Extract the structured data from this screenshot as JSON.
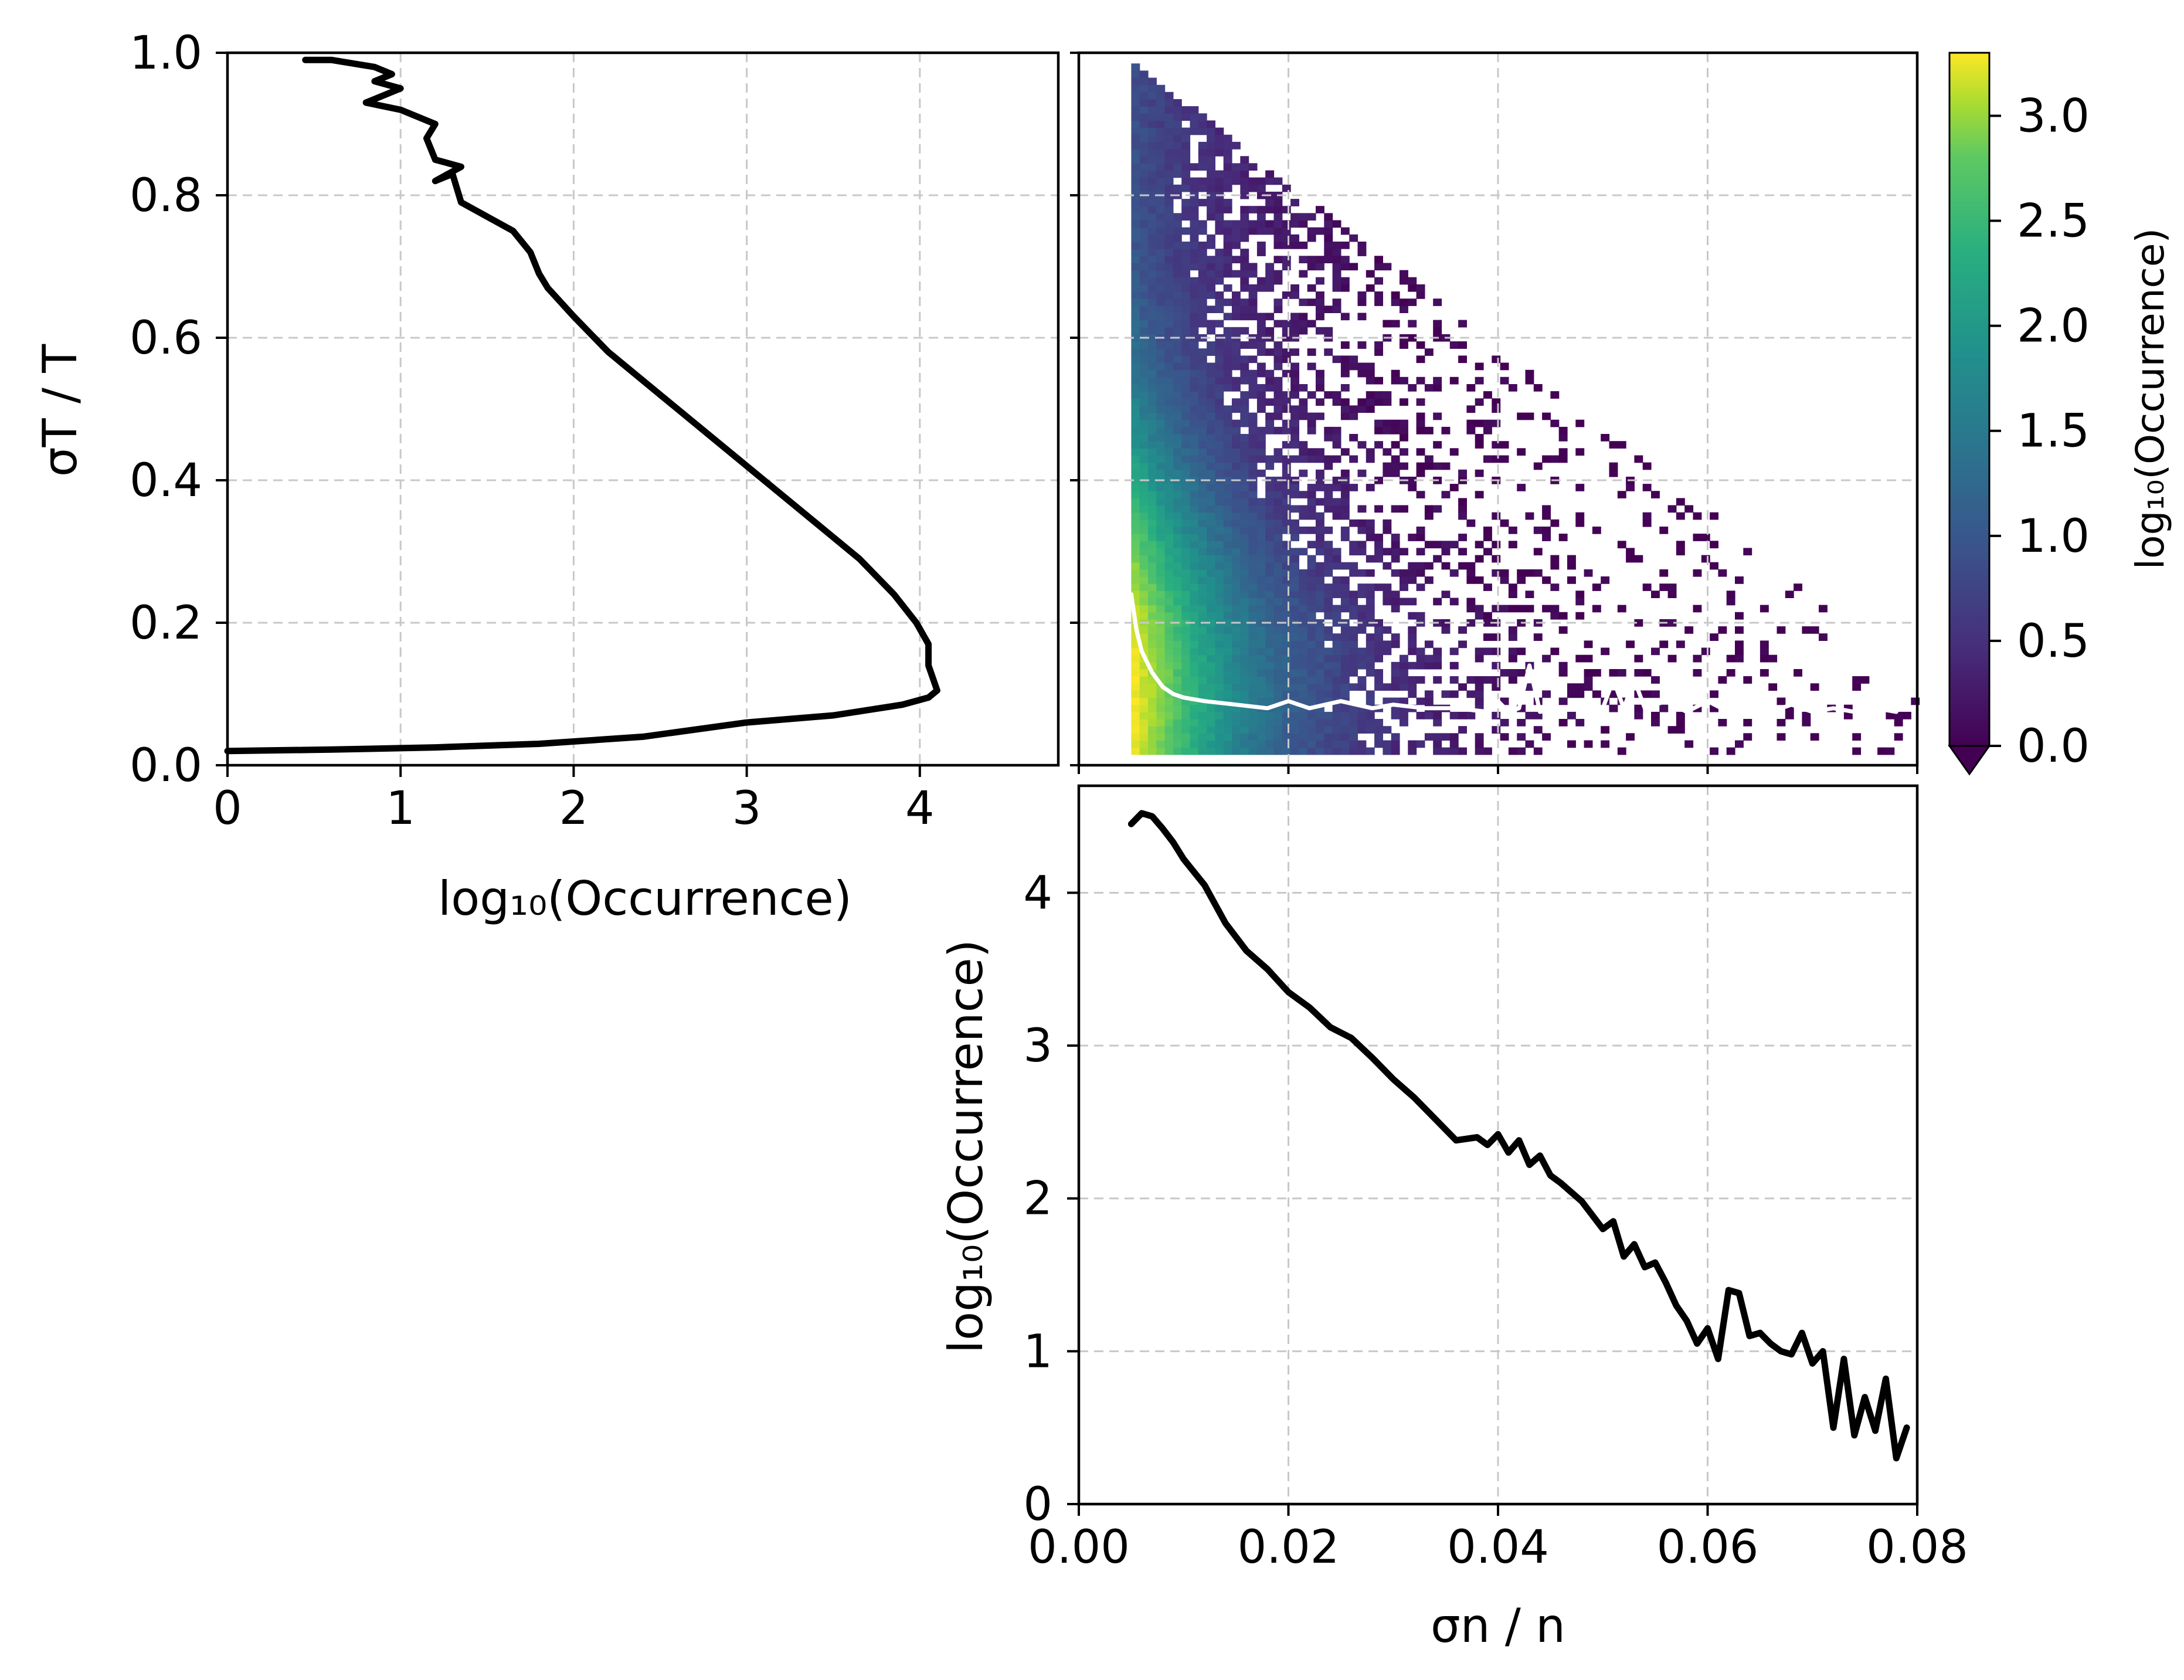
{
  "chart_data": [
    {
      "id": "left",
      "type": "line",
      "xlabel": "log₁₀(Occurrence)",
      "ylabel": "σT / T",
      "xlim": [
        0,
        4.8
      ],
      "ylim": [
        0,
        1.0
      ],
      "xticks": [
        "0",
        "1",
        "2",
        "3",
        "4"
      ],
      "yticks": [
        "0.0",
        "0.2",
        "0.4",
        "0.6",
        "0.8",
        "1.0"
      ],
      "grid": true,
      "series": [
        {
          "color": "#000000",
          "x": [
            0.0,
            0.6,
            1.2,
            1.8,
            2.4,
            3.0,
            3.5,
            3.9,
            4.05,
            4.1,
            4.05,
            4.05,
            3.98,
            3.85,
            3.65,
            3.4,
            3.1,
            2.8,
            2.5,
            2.2,
            2.0,
            1.85,
            1.8,
            1.75,
            1.65,
            1.5,
            1.35,
            1.3,
            1.2,
            1.35,
            1.2,
            1.15,
            1.2,
            1.0,
            0.8,
            1.0,
            0.85,
            0.95,
            0.85,
            0.6,
            0.45
          ],
          "y": [
            0.02,
            0.022,
            0.025,
            0.03,
            0.04,
            0.06,
            0.07,
            0.085,
            0.095,
            0.105,
            0.14,
            0.17,
            0.2,
            0.24,
            0.29,
            0.34,
            0.4,
            0.46,
            0.52,
            0.58,
            0.63,
            0.67,
            0.69,
            0.72,
            0.75,
            0.77,
            0.79,
            0.83,
            0.82,
            0.84,
            0.85,
            0.88,
            0.9,
            0.92,
            0.93,
            0.95,
            0.96,
            0.97,
            0.98,
            0.99,
            0.99
          ]
        }
      ]
    },
    {
      "id": "heatmap",
      "type": "heatmap",
      "xlim": [
        0.0,
        0.08
      ],
      "ylim": [
        0.0,
        1.0
      ],
      "colormap": "viridis",
      "colorbar": {
        "label": "log₁₀(Occurrence)",
        "min": 0.0,
        "max": 3.3,
        "ticks": [
          "0.0",
          "0.5",
          "1.0",
          "1.5",
          "2.0",
          "2.5",
          "3.0"
        ],
        "extend": "min"
      },
      "overlay_line": {
        "color": "#ffffff",
        "x": [
          0.005,
          0.0055,
          0.006,
          0.007,
          0.008,
          0.009,
          0.01,
          0.012,
          0.015,
          0.018,
          0.02,
          0.022,
          0.025,
          0.028,
          0.03,
          0.033,
          0.036,
          0.039,
          0.04,
          0.041,
          0.042,
          0.043,
          0.044,
          0.046,
          0.048,
          0.05,
          0.051,
          0.052,
          0.053,
          0.054,
          0.056,
          0.058,
          0.06,
          0.062,
          0.064,
          0.066,
          0.068,
          0.07,
          0.072,
          0.074,
          0.076,
          0.078
        ],
        "y": [
          0.24,
          0.19,
          0.16,
          0.13,
          0.11,
          0.1,
          0.095,
          0.09,
          0.085,
          0.08,
          0.09,
          0.08,
          0.09,
          0.08,
          0.085,
          0.08,
          0.08,
          0.075,
          0.09,
          0.075,
          0.08,
          0.14,
          0.075,
          0.08,
          0.085,
          0.08,
          0.12,
          0.08,
          0.12,
          0.08,
          0.09,
          0.075,
          0.09,
          0.075,
          0.08,
          0.075,
          0.085,
          0.075,
          0.08,
          0.075,
          0.08,
          0.075
        ]
      }
    },
    {
      "id": "bottom",
      "type": "line",
      "xlabel": "σn / n",
      "ylabel": "log₁₀(Occurrence)",
      "xlim": [
        0.0,
        0.08
      ],
      "ylim": [
        0,
        4.7
      ],
      "xticks": [
        "0.00",
        "0.02",
        "0.04",
        "0.06",
        "0.08"
      ],
      "yticks": [
        "0",
        "1",
        "2",
        "3",
        "4"
      ],
      "grid": true,
      "series": [
        {
          "color": "#000000",
          "x": [
            0.005,
            0.006,
            0.007,
            0.008,
            0.009,
            0.01,
            0.012,
            0.014,
            0.016,
            0.018,
            0.02,
            0.022,
            0.024,
            0.026,
            0.028,
            0.03,
            0.032,
            0.034,
            0.036,
            0.038,
            0.039,
            0.04,
            0.041,
            0.042,
            0.043,
            0.044,
            0.045,
            0.046,
            0.048,
            0.05,
            0.051,
            0.052,
            0.053,
            0.054,
            0.055,
            0.056,
            0.057,
            0.058,
            0.059,
            0.06,
            0.061,
            0.062,
            0.063,
            0.064,
            0.065,
            0.066,
            0.067,
            0.068,
            0.069,
            0.07,
            0.071,
            0.072,
            0.073,
            0.074,
            0.075,
            0.076,
            0.077,
            0.078,
            0.079
          ],
          "y": [
            4.45,
            4.52,
            4.5,
            4.42,
            4.33,
            4.22,
            4.05,
            3.8,
            3.62,
            3.5,
            3.35,
            3.25,
            3.12,
            3.05,
            2.92,
            2.78,
            2.66,
            2.52,
            2.38,
            2.4,
            2.35,
            2.42,
            2.3,
            2.38,
            2.22,
            2.28,
            2.15,
            2.1,
            1.98,
            1.8,
            1.85,
            1.62,
            1.7,
            1.55,
            1.58,
            1.45,
            1.3,
            1.2,
            1.05,
            1.15,
            0.95,
            1.4,
            1.38,
            1.1,
            1.12,
            1.05,
            1.0,
            0.98,
            1.12,
            0.92,
            1.0,
            0.5,
            0.95,
            0.45,
            0.7,
            0.48,
            0.82,
            0.3,
            0.5
          ]
        }
      ]
    }
  ]
}
